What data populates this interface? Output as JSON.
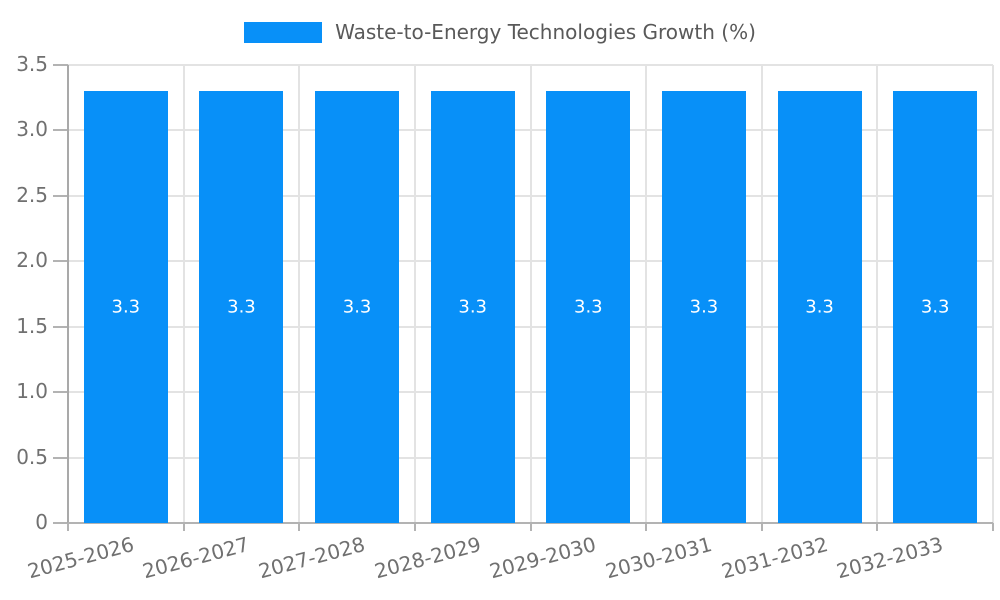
{
  "chart_data": {
    "type": "bar",
    "title": "",
    "legend": {
      "label": "Waste-to-Energy Technologies Growth (%)",
      "position": "top"
    },
    "categories": [
      "2025-2026",
      "2026-2027",
      "2027-2028",
      "2028-2029",
      "2029-2030",
      "2030-2031",
      "2031-2032",
      "2032-2033"
    ],
    "values": [
      3.3,
      3.3,
      3.3,
      3.3,
      3.3,
      3.3,
      3.3,
      3.3
    ],
    "bar_labels": [
      "3.3",
      "3.3",
      "3.3",
      "3.3",
      "3.3",
      "3.3",
      "3.3",
      "3.3"
    ],
    "xlabel": "",
    "ylabel": "",
    "ylim": [
      0,
      3.5
    ],
    "ytick_values": [
      0,
      0.5,
      1,
      1.5,
      2,
      2.5,
      3,
      3.5
    ],
    "ytick_labels": [
      "0",
      "0.5",
      "1.0",
      "1.5",
      "2.0",
      "2.5",
      "3.0",
      "3.5"
    ],
    "grid": true,
    "x_label_rotation_deg": -15,
    "colors": {
      "bar": "#0890f8",
      "bar_label": "#ffffff",
      "gridline": "#e3e3e3",
      "axis": "#a9a9a9",
      "tick": "#b3b3b3",
      "tick_label": "#707070",
      "legend_text": "#595959",
      "background": "#ffffff"
    }
  }
}
